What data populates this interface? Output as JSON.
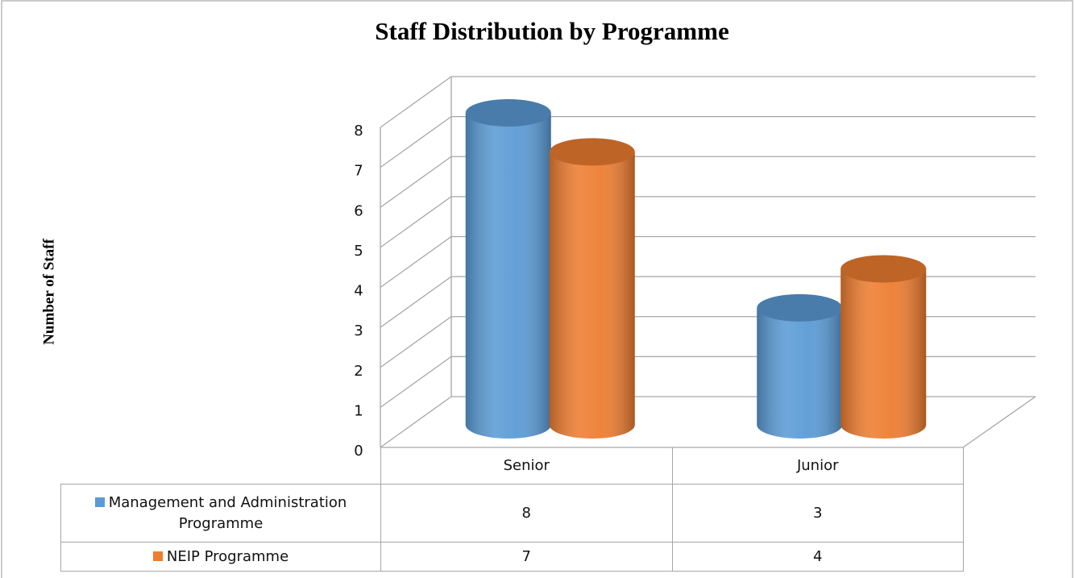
{
  "chart_data": {
    "type": "bar3d",
    "title": "Staff Distribution by Programme",
    "y_label": "Number of Staff",
    "categories": [
      "Senior",
      "Junior"
    ],
    "series": [
      {
        "name": "Management and Administration Programme",
        "color": "#5b9bd5",
        "values": [
          8,
          3
        ]
      },
      {
        "name": "NEIP Programme",
        "color": "#ed7d31",
        "values": [
          7,
          4
        ]
      }
    ],
    "ylim": [
      0,
      8
    ],
    "yticks": [
      0,
      1,
      2,
      3,
      4,
      5,
      6,
      7,
      8
    ],
    "grid": true
  }
}
